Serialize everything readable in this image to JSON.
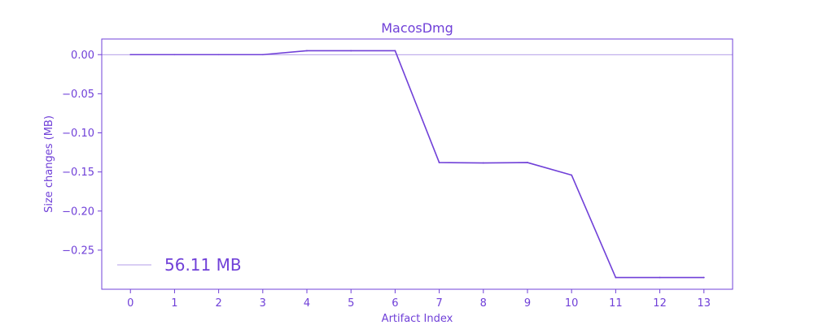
{
  "colors": {
    "accent": "#7040d8",
    "baseline": "#9a7ee0",
    "background": "#ffffff"
  },
  "chart_data": {
    "type": "line",
    "title": "MacosDmg",
    "xlabel": "Artifact Index",
    "ylabel": "Size changes (MB)",
    "x": [
      0,
      1,
      2,
      3,
      4,
      5,
      6,
      7,
      8,
      9,
      10,
      11,
      12,
      13
    ],
    "series": [
      {
        "values": [
          0.0,
          0.0,
          0.0,
          0.0,
          0.005,
          0.005,
          0.005,
          -0.138,
          -0.1385,
          -0.138,
          -0.154,
          -0.285,
          -0.285,
          -0.285
        ]
      }
    ],
    "xlim": [
      -0.65,
      13.65
    ],
    "ylim": [
      -0.3,
      0.02
    ],
    "xticks": [
      "0",
      "1",
      "2",
      "3",
      "4",
      "5",
      "6",
      "7",
      "8",
      "9",
      "10",
      "11",
      "12",
      "13"
    ],
    "yticks": [
      0.0,
      -0.05,
      -0.1,
      -0.15,
      -0.2,
      -0.25
    ],
    "ytick_labels": [
      "0.00",
      "−0.05",
      "−0.10",
      "−0.15",
      "−0.20",
      "−0.25"
    ],
    "baseline_y": 0.0,
    "grid": false,
    "legend": {
      "placement": "lower-left",
      "label": "56.11 MB"
    }
  }
}
